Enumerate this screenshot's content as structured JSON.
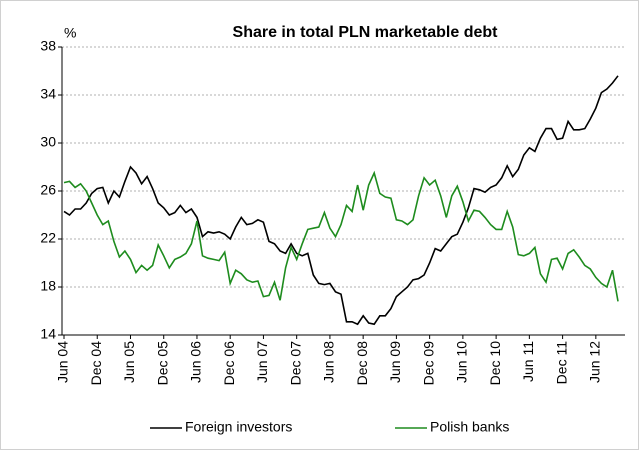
{
  "chart_data": {
    "type": "line",
    "title": "Share in total PLN marketable debt",
    "y_label": "%",
    "categories": [
      "Jun 04",
      null,
      null,
      null,
      null,
      null,
      "Dec 04",
      null,
      null,
      null,
      null,
      null,
      "Jun 05",
      null,
      null,
      null,
      null,
      null,
      "Dec 05",
      null,
      null,
      null,
      null,
      null,
      "Jun 06",
      null,
      null,
      null,
      null,
      null,
      "Dec 06",
      null,
      null,
      null,
      null,
      null,
      "Jun 07",
      null,
      null,
      null,
      null,
      null,
      "Dec 07",
      null,
      null,
      null,
      null,
      null,
      "Jun 08",
      null,
      null,
      null,
      null,
      null,
      "Dec 08",
      null,
      null,
      null,
      null,
      null,
      "Jun 09",
      null,
      null,
      null,
      null,
      null,
      "Dec 09",
      null,
      null,
      null,
      null,
      null,
      "Jun 10",
      null,
      null,
      null,
      null,
      null,
      "Dec 10",
      null,
      null,
      null,
      null,
      null,
      "Jun 11",
      null,
      null,
      null,
      null,
      null,
      "Dec 11",
      null,
      null,
      null,
      null,
      null,
      "Jun 12",
      null,
      null,
      null,
      null
    ],
    "series": [
      {
        "name": "Foreign investors",
        "color": "#000000",
        "values": [
          24.3,
          24.0,
          24.5,
          24.5,
          25.0,
          25.8,
          26.2,
          26.3,
          25.0,
          26.0,
          25.5,
          26.8,
          28.0,
          27.5,
          26.6,
          27.2,
          26.2,
          25.0,
          24.6,
          24.0,
          24.2,
          24.8,
          24.2,
          24.5,
          23.8,
          22.2,
          22.6,
          22.5,
          22.6,
          22.4,
          22.0,
          23.0,
          23.8,
          23.2,
          23.3,
          23.6,
          23.4,
          21.8,
          21.6,
          21.0,
          20.8,
          21.6,
          20.8,
          20.6,
          20.8,
          19.0,
          18.3,
          18.2,
          18.3,
          17.6,
          17.4,
          15.1,
          15.1,
          14.9,
          15.6,
          15.0,
          14.9,
          15.6,
          15.6,
          16.2,
          17.2,
          17.6,
          18.0,
          18.6,
          18.7,
          19.0,
          20.0,
          21.2,
          21.0,
          21.6,
          22.2,
          22.4,
          23.4,
          24.6,
          26.2,
          26.1,
          25.9,
          26.3,
          26.5,
          27.1,
          28.1,
          27.2,
          27.8,
          29.0,
          29.6,
          29.3,
          30.4,
          31.2,
          31.2,
          30.3,
          30.4,
          31.8,
          31.1,
          31.1,
          31.2,
          32.0,
          32.9,
          34.2,
          34.5,
          35.0,
          35.6
        ]
      },
      {
        "name": "Polish banks",
        "color": "#1e8c1e",
        "values": [
          26.7,
          26.8,
          26.3,
          26.6,
          26.0,
          25.0,
          24.0,
          23.2,
          23.5,
          21.8,
          20.5,
          21.0,
          20.3,
          19.2,
          19.8,
          19.4,
          19.8,
          21.5,
          20.6,
          19.6,
          20.3,
          20.5,
          20.8,
          21.6,
          23.5,
          20.6,
          20.4,
          20.3,
          20.2,
          20.9,
          18.3,
          19.4,
          19.1,
          18.6,
          18.4,
          18.5,
          17.2,
          17.3,
          18.4,
          16.9,
          19.6,
          21.3,
          20.3,
          21.6,
          22.8,
          22.9,
          23.0,
          24.2,
          22.9,
          22.2,
          23.2,
          24.8,
          24.3,
          26.5,
          24.4,
          26.5,
          27.5,
          25.8,
          25.5,
          25.4,
          23.6,
          23.5,
          23.2,
          23.6,
          25.6,
          27.1,
          26.5,
          26.9,
          25.6,
          23.8,
          25.6,
          26.4,
          25.1,
          23.5,
          24.4,
          24.3,
          23.8,
          23.2,
          22.8,
          22.8,
          24.3,
          23.0,
          20.7,
          20.6,
          20.8,
          21.3,
          19.1,
          18.4,
          20.3,
          20.4,
          19.5,
          20.8,
          21.1,
          20.5,
          19.8,
          19.5,
          18.8,
          18.3,
          18.0,
          19.4,
          16.8
        ]
      }
    ],
    "ylim": [
      14,
      38
    ],
    "yticks": [
      14,
      18,
      22,
      26,
      30,
      34,
      38
    ],
    "grid": true,
    "legend": "bottom"
  }
}
